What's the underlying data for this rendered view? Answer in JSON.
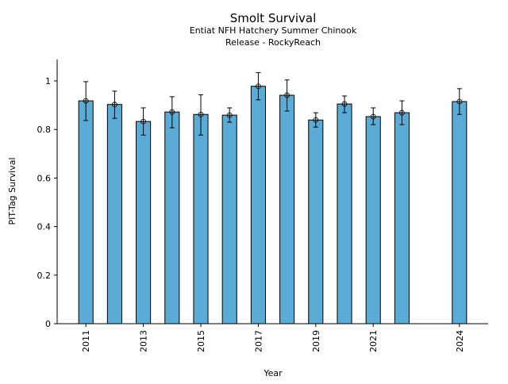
{
  "chart_data": {
    "type": "bar",
    "title": "Smolt Survival",
    "subtitle_lines": [
      "Entiat NFH Hatchery Summer Chinook",
      "Release - RockyReach"
    ],
    "xlabel": "Year",
    "ylabel": "PIT-Tag Survival",
    "xlim": [
      2010,
      2025
    ],
    "ylim": [
      0,
      1.09
    ],
    "x_ticks": [
      2011,
      2013,
      2015,
      2017,
      2019,
      2021,
      2024
    ],
    "y_ticks": [
      0,
      0.2,
      0.4,
      0.6,
      0.8,
      1
    ],
    "y_tick_labels": [
      "0",
      "0.2",
      "0.4",
      "0.6",
      "0.8",
      "1"
    ],
    "bar_color": "#5aabd6",
    "grid": false,
    "x": [
      2011,
      2012,
      2013,
      2014,
      2015,
      2016,
      2017,
      2018,
      2019,
      2020,
      2021,
      2022,
      2024
    ],
    "values": [
      0.918,
      0.903,
      0.833,
      0.872,
      0.862,
      0.859,
      0.978,
      0.941,
      0.839,
      0.905,
      0.853,
      0.869,
      0.915
    ],
    "error_upper": [
      0.997,
      0.958,
      0.889,
      0.935,
      0.943,
      0.889,
      1.034,
      1.004,
      0.869,
      0.938,
      0.889,
      0.918,
      0.968
    ],
    "error_lower": [
      0.837,
      0.846,
      0.777,
      0.807,
      0.777,
      0.83,
      0.922,
      0.876,
      0.81,
      0.869,
      0.82,
      0.82,
      0.862
    ]
  }
}
